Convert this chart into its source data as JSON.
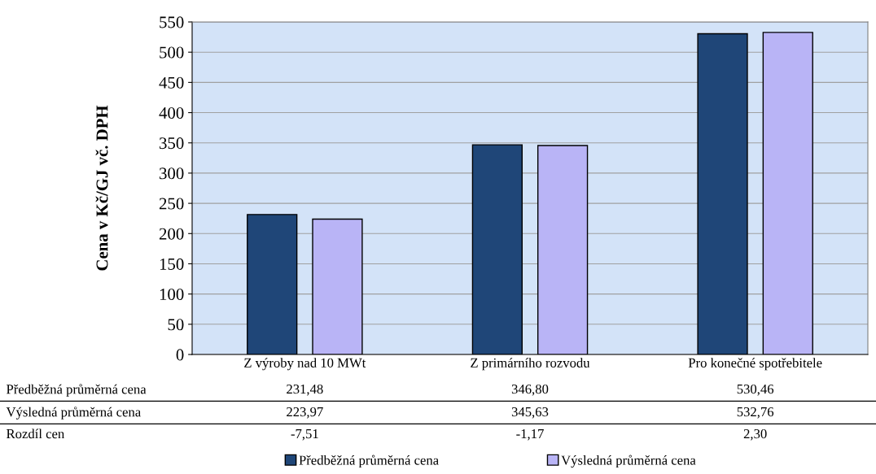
{
  "chart_data": {
    "type": "bar",
    "ylabel": "Cena v Kč/GJ vč. DPH",
    "categories": [
      "Z výroby nad 10 MWt",
      "Z primárního rozvodu",
      "Pro konečné spotřebitele"
    ],
    "series": [
      {
        "name": "Předběžná průměrná cena",
        "color": "#1f4678",
        "values": [
          231.48,
          346.8,
          530.46
        ],
        "value_labels": [
          "231,48",
          "346,80",
          "530,46"
        ]
      },
      {
        "name": "Výsledná průměrná cena",
        "color": "#b9b4f6",
        "values": [
          223.97,
          345.63,
          532.76
        ],
        "value_labels": [
          "223,97",
          "345,63",
          "532,76"
        ]
      }
    ],
    "annotations": [
      "Rozdíl cen",
      "-7,51",
      "-1,17",
      "2,30"
    ],
    "ylim": [
      0,
      550
    ],
    "yticks": [
      0,
      50,
      100,
      150,
      200,
      250,
      300,
      350,
      400,
      450,
      500,
      550
    ],
    "grid": "y",
    "legend": "bottom"
  }
}
